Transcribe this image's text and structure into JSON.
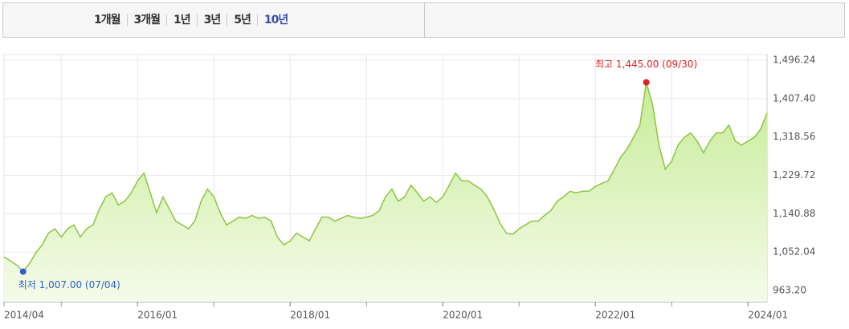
{
  "tabs": [
    {
      "label": "1개월",
      "active": false
    },
    {
      "label": "3개월",
      "active": false
    },
    {
      "label": "1년",
      "active": false
    },
    {
      "label": "3년",
      "active": false
    },
    {
      "label": "5년",
      "active": false
    },
    {
      "label": "10년",
      "active": true
    }
  ],
  "chart_data": {
    "type": "line",
    "color": "#8cc63f",
    "fill": "#d9f2b8",
    "grid": true,
    "categories": [
      "2014/04",
      null,
      null,
      null,
      null,
      null,
      null,
      null,
      null,
      null,
      null,
      null,
      null,
      null,
      null,
      null,
      null,
      null,
      null,
      null,
      null,
      "2016/01",
      null,
      null,
      null,
      null,
      null,
      null,
      null,
      null,
      null,
      null,
      null,
      null,
      null,
      null,
      null,
      null,
      null,
      null,
      null,
      null,
      null,
      null,
      null,
      "2018/01",
      null,
      null,
      null,
      null,
      null,
      null,
      null,
      null,
      null,
      null,
      null,
      null,
      null,
      null,
      null,
      null,
      null,
      null,
      null,
      null,
      null,
      null,
      null,
      "2020/01",
      null,
      null,
      null,
      null,
      null,
      null,
      null,
      null,
      null,
      null,
      null,
      null,
      null,
      null,
      null,
      null,
      null,
      null,
      null,
      null,
      null,
      null,
      null,
      "2022/01",
      null,
      null,
      null,
      null,
      null,
      null,
      null,
      null,
      null,
      null,
      null,
      null,
      null,
      null,
      null,
      null,
      null,
      null,
      null,
      null,
      null,
      null,
      null,
      "2024/01",
      null,
      null,
      null
    ],
    "values": [
      1041,
      1032,
      1022,
      1007,
      1026,
      1050,
      1069,
      1096,
      1106,
      1087,
      1106,
      1115,
      1087,
      1106,
      1115,
      1152,
      1180,
      1189,
      1161,
      1170,
      1189,
      1217,
      1235,
      1189,
      1143,
      1180,
      1152,
      1124,
      1115,
      1106,
      1124,
      1170,
      1198,
      1180,
      1143,
      1115,
      1124,
      1133,
      1130,
      1137,
      1130,
      1133,
      1124,
      1087,
      1069,
      1078,
      1096,
      1087,
      1078,
      1106,
      1133,
      1133,
      1124,
      1130,
      1137,
      1133,
      1130,
      1133,
      1137,
      1148,
      1180,
      1198,
      1170,
      1180,
      1207,
      1189,
      1170,
      1180,
      1167,
      1180,
      1207,
      1235,
      1217,
      1217,
      1207,
      1198,
      1180,
      1152,
      1119,
      1096,
      1093,
      1106,
      1115,
      1124,
      1124,
      1137,
      1148,
      1170,
      1180,
      1193,
      1189,
      1193,
      1193,
      1204,
      1211,
      1217,
      1244,
      1272,
      1291,
      1318,
      1346,
      1445,
      1393,
      1300,
      1244,
      1263,
      1300,
      1318,
      1328,
      1309,
      1282,
      1309,
      1328,
      1328,
      1346,
      1309,
      1300,
      1309,
      1318,
      1337,
      1374
    ],
    "ylim": [
      937.3,
      1509.2
    ],
    "yticks": [
      {
        "value": 963.2,
        "label": "963.20"
      },
      {
        "value": 1052.04,
        "label": "1,052.04"
      },
      {
        "value": 1140.88,
        "label": "1,140.88"
      },
      {
        "value": 1229.72,
        "label": "1,229.72"
      },
      {
        "value": 1318.56,
        "label": "1,318.56"
      },
      {
        "value": 1407.4,
        "label": "1,407.40"
      },
      {
        "value": 1496.24,
        "label": "1,496.24"
      }
    ],
    "annotations": [
      {
        "text": "최고 1,445.00 (09/30)",
        "color": "#e0201e",
        "at": "max"
      },
      {
        "text": "최저 1,007.00 (07/04)",
        "color": "#2f5fc8",
        "at": "min"
      }
    ]
  }
}
